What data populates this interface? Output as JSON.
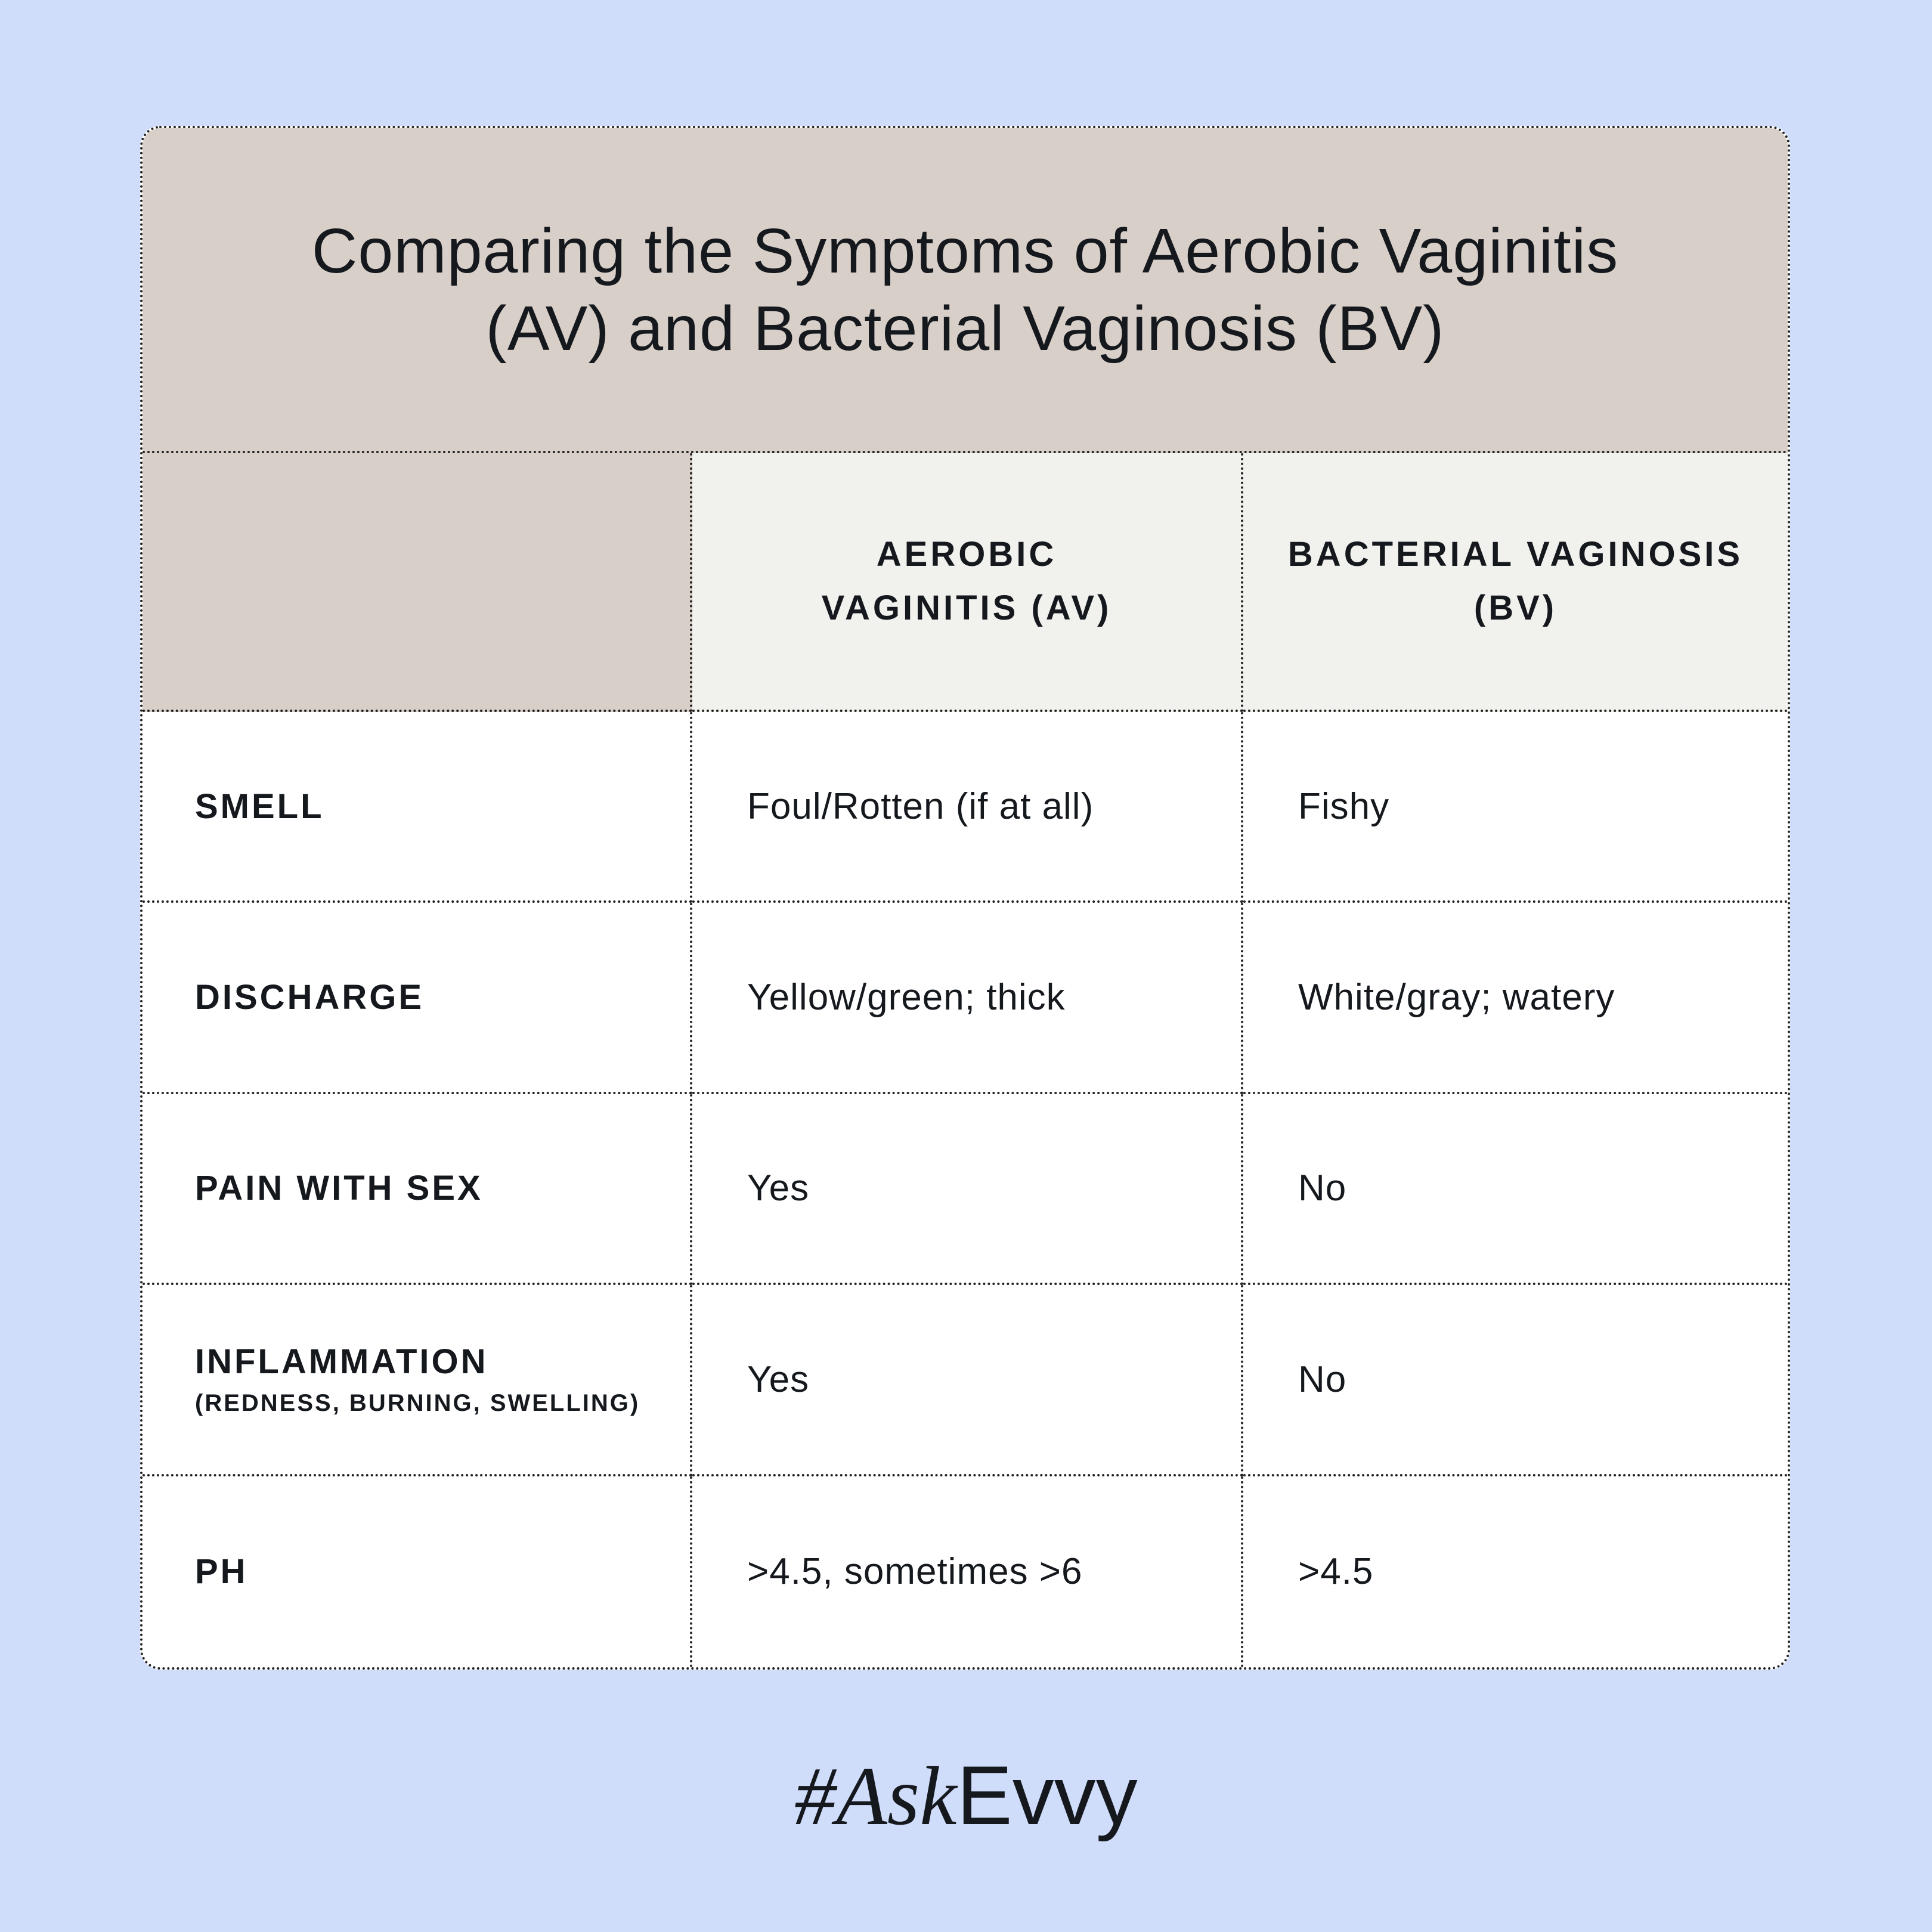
{
  "title": "Comparing the Symptoms of Aerobic Vaginitis (AV) and Bacterial Vaginosis (BV)",
  "columns": [
    "AEROBIC VAGINITIS (AV)",
    "BACTERIAL VAGINOSIS (BV)"
  ],
  "rows": [
    {
      "label": "SMELL",
      "sub": "",
      "av": "Foul/Rotten (if at all)",
      "bv": "Fishy"
    },
    {
      "label": "DISCHARGE",
      "sub": "",
      "av": "Yellow/green; thick",
      "bv": "White/gray; watery"
    },
    {
      "label": "PAIN WITH SEX",
      "sub": "",
      "av": "Yes",
      "bv": "No"
    },
    {
      "label": "INFLAMMATION",
      "sub": "(REDNESS, BURNING, SWELLING)",
      "av": "Yes",
      "bv": "No"
    },
    {
      "label": "PH",
      "sub": "",
      "av": ">4.5, sometimes >6",
      "bv": ">4.5"
    }
  ],
  "logo": {
    "prefix": "#Ask",
    "suffix": "Evvy"
  },
  "colors": {
    "background": "#cfdcfa",
    "title_band": "#d8cfc9",
    "header_cell": "#f1f1ee",
    "text": "#15191e"
  }
}
